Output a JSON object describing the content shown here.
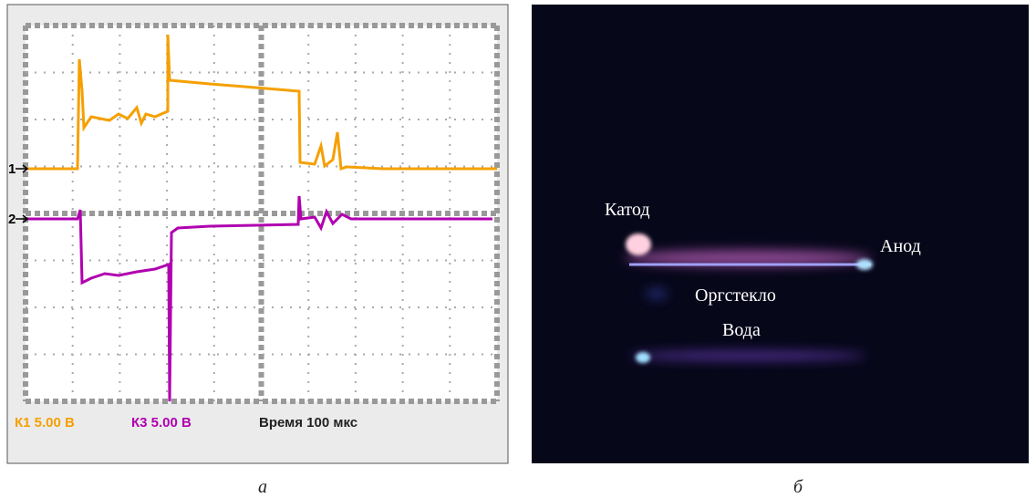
{
  "panel_a": {
    "marker_1": "1",
    "marker_2": "2",
    "channel_1": "К1 5.00 В",
    "channel_3": "К3 5.00 В",
    "timebase": "Время 100 мкс",
    "caption": "а"
  },
  "panel_b": {
    "cathode": "Катод",
    "anode": "Анод",
    "plexiglass": "Оргстекло",
    "water": "Вода",
    "caption": "б"
  }
}
